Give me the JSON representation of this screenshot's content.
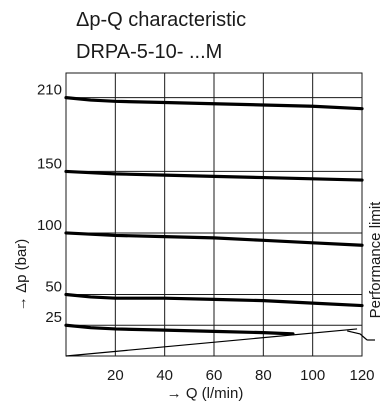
{
  "chart_data": {
    "type": "line",
    "title": "Δp-Q characteristic",
    "subtitle": "DRPA-5-10- ...M",
    "xlabel": "→ Q (l/min)",
    "ylabel": "→ Δp (bar)",
    "xlim": [
      0,
      120
    ],
    "ylim": [
      0,
      230
    ],
    "x_ticks": [
      20,
      40,
      60,
      80,
      100,
      120
    ],
    "y_ticks": [
      25,
      50,
      100,
      150,
      210
    ],
    "grid": true,
    "series": [
      {
        "x": [
          0,
          10,
          20,
          40,
          60,
          80,
          100,
          120
        ],
        "values": [
          210,
          208,
          207,
          206,
          205,
          204,
          203,
          201
        ]
      },
      {
        "x": [
          0,
          10,
          20,
          40,
          60,
          80,
          100,
          120
        ],
        "values": [
          150,
          149,
          148,
          147,
          146,
          145,
          144,
          143
        ]
      },
      {
        "x": [
          0,
          10,
          20,
          40,
          60,
          80,
          100,
          120
        ],
        "values": [
          100,
          99,
          98,
          97,
          96,
          94,
          92,
          90
        ]
      },
      {
        "x": [
          0,
          10,
          20,
          40,
          60,
          80,
          100,
          120
        ],
        "values": [
          50,
          48,
          47,
          47,
          46,
          45,
          43,
          41
        ]
      },
      {
        "x": [
          0,
          10,
          20,
          40,
          60,
          80,
          92
        ],
        "values": [
          25,
          23,
          22,
          21,
          20,
          19,
          18
        ]
      }
    ],
    "performance_limit": {
      "label": "Performance limit",
      "x": [
        0,
        118
      ],
      "values": [
        0,
        22
      ]
    }
  }
}
